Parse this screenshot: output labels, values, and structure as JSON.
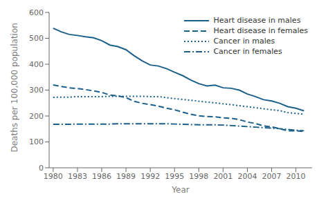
{
  "chart_data": {
    "type": "line",
    "xlabel": "Year",
    "ylabel": "Deaths per 100,000 population",
    "x": [
      1980,
      1981,
      1982,
      1983,
      1984,
      1985,
      1986,
      1987,
      1988,
      1989,
      1990,
      1991,
      1992,
      1993,
      1994,
      1995,
      1996,
      1997,
      1998,
      1999,
      2000,
      2001,
      2002,
      2003,
      2004,
      2005,
      2006,
      2007,
      2008,
      2009,
      2010,
      2011
    ],
    "series": [
      {
        "name": "Heart disease in males",
        "color": "#1a5f8a",
        "line_style": "solid",
        "values": [
          539,
          525,
          515,
          511,
          506,
          502,
          491,
          474,
          468,
          456,
          433,
          413,
          397,
          393,
          383,
          369,
          356,
          339,
          325,
          316,
          319,
          309,
          307,
          300,
          285,
          275,
          263,
          258,
          249,
          236,
          230,
          220
        ]
      },
      {
        "name": "Heart disease in females",
        "color": "#1a5f8a",
        "line_style": "dashed",
        "values": [
          320,
          314,
          309,
          306,
          302,
          297,
          291,
          281,
          278,
          271,
          257,
          249,
          244,
          238,
          230,
          224,
          215,
          207,
          201,
          198,
          197,
          193,
          191,
          186,
          177,
          171,
          162,
          158,
          151,
          143,
          143,
          140
        ]
      },
      {
        "name": "Cancer in males",
        "color": "#1a5f8a",
        "line_style": "dotted",
        "values": [
          272,
          273,
          273,
          275,
          275,
          275,
          275,
          276,
          276,
          276,
          276,
          276,
          275,
          275,
          271,
          267,
          264,
          261,
          257,
          254,
          251,
          247,
          244,
          240,
          236,
          232,
          228,
          224,
          221,
          213,
          210,
          207
        ]
      },
      {
        "name": "Cancer in females",
        "color": "#1a5f8a",
        "line_style": "dashdot",
        "values": [
          168,
          168,
          168,
          169,
          169,
          169,
          169,
          169,
          170,
          170,
          170,
          170,
          170,
          170,
          170,
          169,
          168,
          167,
          166,
          166,
          166,
          165,
          163,
          161,
          159,
          157,
          155,
          153,
          151,
          148,
          145,
          143
        ]
      }
    ],
    "xlim": [
      1979.5,
      2012
    ],
    "ylim": [
      0,
      600
    ],
    "xticks": [
      1980,
      1983,
      1986,
      1989,
      1992,
      1995,
      1998,
      2001,
      2004,
      2007,
      2010
    ],
    "yticks": [
      0,
      100,
      200,
      300,
      400,
      500,
      600
    ],
    "legend": "upper right",
    "grid": false
  }
}
